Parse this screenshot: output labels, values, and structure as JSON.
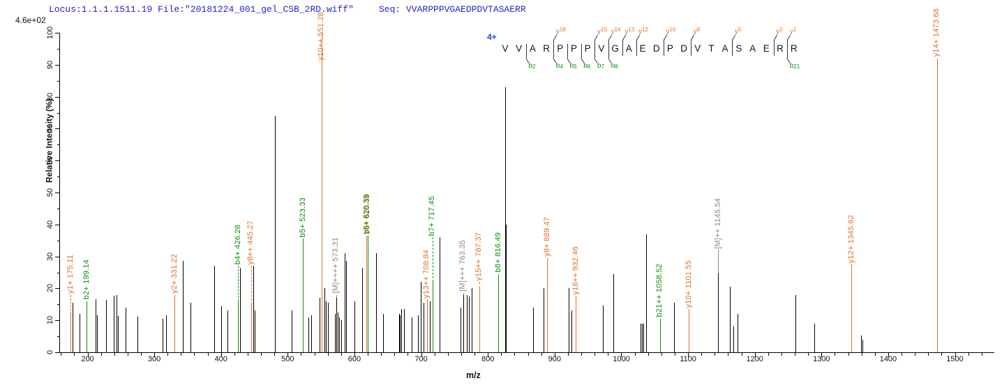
{
  "header": {
    "locus_text": "Locus:1.1.1.1511.19 File:\"20181224_001_gel_CSB_2RD.wiff\"",
    "seq_text": "Seq: VVARPPPVGAEDPDVTASAERR"
  },
  "scale_note": "4.6e+02",
  "colors": {
    "header_blue": "#2424cc",
    "charge_blue": "#2244cc",
    "y_ion": "#dd7128",
    "b_ion": "#0e8a0e",
    "precursor": "#888888",
    "peak_black": "#000000",
    "axis": "#000000"
  },
  "axes": {
    "x": {
      "label": "m/z",
      "min": 158,
      "max": 1559,
      "major_ticks": [
        200,
        300,
        400,
        500,
        600,
        700,
        800,
        900,
        1000,
        1100,
        1200,
        1300,
        1400,
        1500
      ],
      "minor_step": 20
    },
    "y": {
      "label": "Relative Intensity (%)",
      "min": 0,
      "max": 100,
      "major_step": 10,
      "minor_step": 5,
      "tick_labels": [
        "0",
        "10",
        "20",
        "30",
        "40",
        "50",
        "60",
        "70",
        "80",
        "90",
        "100"
      ]
    }
  },
  "annotation": {
    "charge": "4+",
    "residues": [
      "V",
      "V",
      "A",
      "R",
      "P",
      "P",
      "P",
      "V",
      "G",
      "A",
      "E",
      "D",
      "P",
      "D",
      "V",
      "T",
      "A",
      "S",
      "A",
      "E",
      "R",
      "R"
    ],
    "y_ions": [
      {
        "series": "y",
        "num": "18",
        "after": 4
      },
      {
        "series": "y",
        "num": "15",
        "after": 7
      },
      {
        "series": "y",
        "num": "14",
        "after": 8
      },
      {
        "series": "y",
        "num": "13",
        "after": 9
      },
      {
        "series": "y",
        "num": "12",
        "after": 10
      },
      {
        "series": "y",
        "num": "10",
        "after": 12
      },
      {
        "series": "y",
        "num": "8",
        "after": 14
      },
      {
        "series": "y",
        "num": "5",
        "after": 17
      },
      {
        "series": "y",
        "num": "2",
        "after": 20
      },
      {
        "series": "y",
        "num": "1",
        "after": 21
      }
    ],
    "b_ions": [
      {
        "series": "b",
        "num": "2",
        "after": 2
      },
      {
        "series": "b",
        "num": "4",
        "after": 4
      },
      {
        "series": "b",
        "num": "5",
        "after": 5
      },
      {
        "series": "b",
        "num": "6",
        "after": 6
      },
      {
        "series": "b",
        "num": "7",
        "after": 7
      },
      {
        "series": "b",
        "num": "8",
        "after": 8
      },
      {
        "series": "b",
        "num": "21",
        "after": 21
      }
    ]
  },
  "chart_data": {
    "type": "bar",
    "subtype": "ms2-peptide-fragment-spectrum",
    "title": "",
    "xlabel": "m/z",
    "ylabel": "Relative Intensity (%)",
    "xlim": [
      158,
      1559
    ],
    "ylim": [
      0,
      100
    ],
    "intensity_scale_note": "4.6e+02",
    "labeled_peaks": [
      {
        "mz": 175.11,
        "pct": 12,
        "type": "y",
        "label": "y1+ 175.11",
        "label_start": 18
      },
      {
        "mz": 199.14,
        "pct": 15,
        "type": "b",
        "label": "b2+ 199.14",
        "label_start": 16
      },
      {
        "mz": 331.22,
        "pct": 17,
        "type": "y",
        "label": "y2+ 331.22",
        "label_start": 18
      },
      {
        "mz": 426.28,
        "pct": 16,
        "type": "b",
        "label": "b4+ 426.28",
        "label_start": 27
      },
      {
        "mz": 445.27,
        "pct": 15,
        "type": "y",
        "label": "y8++ 445.27",
        "label_start": 27
      },
      {
        "mz": 523.33,
        "pct": 35,
        "type": "b",
        "label": "b5+ 523.33",
        "label_start": 35.5
      },
      {
        "mz": 551.28,
        "pct": 100,
        "type": "y",
        "label": "y10++ 551.28",
        "label_start": 91
      },
      {
        "mz": 573.31,
        "pct": 17,
        "type": "M",
        "label": "[M]++++ 573.31",
        "label_start": 18
      },
      {
        "mz": 618.33,
        "pct": 36,
        "type": "y",
        "label": "y5+ 618.33",
        "label_start": 36.5
      },
      {
        "mz": 620.39,
        "pct": 36,
        "type": "b",
        "label": "b6+ 620.39",
        "label_start": 36.5
      },
      {
        "mz": 708.84,
        "pct": 16,
        "type": "y",
        "label": "y13++ 708.84",
        "label_start": 16.5
      },
      {
        "mz": 717.45,
        "pct": 22,
        "type": "b",
        "label": "b7+ 717.45",
        "label_start": 36
      },
      {
        "mz": 763.35,
        "pct": 18,
        "type": "M",
        "label": "[M]+++ 763.35",
        "label_start": 18.5
      },
      {
        "mz": 787.37,
        "pct": 20,
        "type": "y",
        "label": "y15++ 787.37",
        "label_start": 22
      },
      {
        "mz": 816.49,
        "pct": 24,
        "type": "b",
        "label": "b8+ 816.49",
        "label_start": 24.5
      },
      {
        "mz": 889.47,
        "pct": 29,
        "type": "y",
        "label": "y8+ 889.47",
        "label_start": 29.5
      },
      {
        "mz": 932.46,
        "pct": 17,
        "type": "y",
        "label": "y18++ 932.46",
        "label_start": 17.5
      },
      {
        "mz": 1058.52,
        "pct": 10,
        "type": "b",
        "label": "b21++ 1058.52",
        "label_start": 10.5
      },
      {
        "mz": 1101.55,
        "pct": 13,
        "type": "y",
        "label": "y10+ 1101.55",
        "label_start": 13.5
      },
      {
        "mz": 1145.54,
        "pct": 25,
        "type": "M",
        "label": "[M]++ 1145.54",
        "label_start": 32
      },
      {
        "mz": 1345.62,
        "pct": 27,
        "type": "y",
        "label": "y12+ 1345.62",
        "label_start": 27.5
      },
      {
        "mz": 1473.68,
        "pct": 92,
        "type": "y",
        "label": "y14+ 1473.68",
        "label_start": 92
      }
    ],
    "unlabeled_peaks": [
      {
        "mz": 178,
        "pct": 15.6
      },
      {
        "mz": 188,
        "pct": 12
      },
      {
        "mz": 213,
        "pct": 16.5
      },
      {
        "mz": 215,
        "pct": 11.5
      },
      {
        "mz": 228,
        "pct": 16.3
      },
      {
        "mz": 240,
        "pct": 17.7
      },
      {
        "mz": 244,
        "pct": 18
      },
      {
        "mz": 246,
        "pct": 11.4
      },
      {
        "mz": 258,
        "pct": 14
      },
      {
        "mz": 275,
        "pct": 11.2
      },
      {
        "mz": 313,
        "pct": 10.5
      },
      {
        "mz": 318,
        "pct": 11.5
      },
      {
        "mz": 343,
        "pct": 28.5
      },
      {
        "mz": 355,
        "pct": 15.5
      },
      {
        "mz": 390,
        "pct": 27
      },
      {
        "mz": 401,
        "pct": 14.5
      },
      {
        "mz": 410,
        "pct": 13
      },
      {
        "mz": 429,
        "pct": 26.5
      },
      {
        "mz": 449,
        "pct": 27
      },
      {
        "mz": 451.5,
        "pct": 13
      },
      {
        "mz": 481,
        "pct": 74
      },
      {
        "mz": 506,
        "pct": 13
      },
      {
        "mz": 531,
        "pct": 11
      },
      {
        "mz": 536,
        "pct": 11.5
      },
      {
        "mz": 548,
        "pct": 17
      },
      {
        "mz": 556,
        "pct": 20
      },
      {
        "mz": 558,
        "pct": 16
      },
      {
        "mz": 561,
        "pct": 15.5
      },
      {
        "mz": 571,
        "pct": 12
      },
      {
        "mz": 575,
        "pct": 12.5
      },
      {
        "mz": 578,
        "pct": 11
      },
      {
        "mz": 581,
        "pct": 10
      },
      {
        "mz": 586,
        "pct": 31
      },
      {
        "mz": 588,
        "pct": 28.5
      },
      {
        "mz": 601,
        "pct": 16
      },
      {
        "mz": 612,
        "pct": 26.5
      },
      {
        "mz": 633,
        "pct": 31
      },
      {
        "mz": 643,
        "pct": 12
      },
      {
        "mz": 667,
        "pct": 12
      },
      {
        "mz": 669,
        "pct": 11.5
      },
      {
        "mz": 671,
        "pct": 13.5
      },
      {
        "mz": 675,
        "pct": 13.5
      },
      {
        "mz": 686,
        "pct": 11
      },
      {
        "mz": 696,
        "pct": 11.5
      },
      {
        "mz": 700,
        "pct": 22
      },
      {
        "mz": 704,
        "pct": 15.5
      },
      {
        "mz": 713,
        "pct": 16
      },
      {
        "mz": 728,
        "pct": 36
      },
      {
        "mz": 760,
        "pct": 14
      },
      {
        "mz": 769,
        "pct": 18
      },
      {
        "mz": 772,
        "pct": 17.5
      },
      {
        "mz": 776,
        "pct": 20
      },
      {
        "mz": 826,
        "pct": 83
      },
      {
        "mz": 828,
        "pct": 40
      },
      {
        "mz": 868,
        "pct": 14
      },
      {
        "mz": 884,
        "pct": 20
      },
      {
        "mz": 922,
        "pct": 20
      },
      {
        "mz": 926,
        "pct": 13
      },
      {
        "mz": 973,
        "pct": 14.7
      },
      {
        "mz": 989,
        "pct": 24.5
      },
      {
        "mz": 1029,
        "pct": 9
      },
      {
        "mz": 1031,
        "pct": 9
      },
      {
        "mz": 1034,
        "pct": 9
      },
      {
        "mz": 1038,
        "pct": 37
      },
      {
        "mz": 1080,
        "pct": 15.6
      },
      {
        "mz": 1163,
        "pct": 20.5
      },
      {
        "mz": 1168,
        "pct": 8
      },
      {
        "mz": 1175,
        "pct": 12
      },
      {
        "mz": 1262,
        "pct": 17.8
      },
      {
        "mz": 1290,
        "pct": 9
      },
      {
        "mz": 1360,
        "pct": 5.3
      },
      {
        "mz": 1362,
        "pct": 4
      }
    ]
  }
}
